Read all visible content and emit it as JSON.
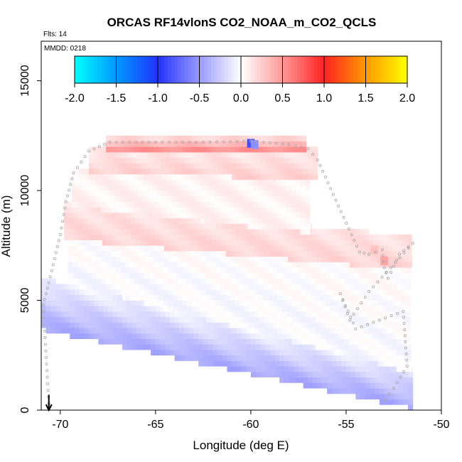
{
  "chart_data": {
    "type": "heatmap",
    "title": "ORCAS RF14vlonS CO2_NOAA_m_CO2_QCLS",
    "corner_labels": {
      "flights": "Flts: 14",
      "date": "MMDD: 0218"
    },
    "xlabel": "Longitude (deg E)",
    "ylabel": "Altitude (m)",
    "xlim": [
      -71,
      -50
    ],
    "ylim": [
      0,
      16800
    ],
    "x_ticks": [
      -70,
      -65,
      -60,
      -55,
      -50
    ],
    "x_tick_labels": [
      "-70",
      "-65",
      "-60",
      "-55",
      "-50"
    ],
    "y_ticks": [
      0,
      5000,
      10000,
      15000
    ],
    "y_tick_labels": [
      "0",
      "5000",
      "10000",
      "15000"
    ],
    "colorbar": {
      "ticks": [
        -2.0,
        -1.5,
        -1.0,
        -0.5,
        0.0,
        0.5,
        1.0,
        1.5,
        2.0
      ],
      "tick_labels": [
        "-2.0",
        "-1.5",
        "-1.0",
        "-0.5",
        "0.0",
        "0.5",
        "1.0",
        "1.5",
        "2.0"
      ],
      "stops": [
        {
          "v": -2.0,
          "color": "#00ffff"
        },
        {
          "v": -1.5,
          "color": "#0099ff"
        },
        {
          "v": -1.0,
          "color": "#2233ff"
        },
        {
          "v": -0.5,
          "color": "#9999ff"
        },
        {
          "v": 0.0,
          "color": "#ffffff"
        },
        {
          "v": 0.5,
          "color": "#ff9999"
        },
        {
          "v": 1.0,
          "color": "#ff2222"
        },
        {
          "v": 1.5,
          "color": "#ff9900"
        },
        {
          "v": 2.0,
          "color": "#ffff00"
        }
      ]
    },
    "layers": [
      {
        "lon_start": -71.0,
        "lon_end": -51.6,
        "alt_low_start": 3800,
        "alt_low_end": 200,
        "alt_high_start": 5900,
        "alt_high_end": 1900,
        "value_low": -0.42,
        "value_high": -0.08
      },
      {
        "lon_start": -69.6,
        "lon_end": -51.8,
        "alt_low_start": 5900,
        "alt_low_end": 1900,
        "alt_high_start": 8600,
        "alt_high_end": 6500,
        "value_low": -0.03,
        "value_high": 0.02
      },
      {
        "lon_start": -69.8,
        "lon_end": -51.6,
        "alt_low_start": 7900,
        "alt_low_end": 6500,
        "alt_high_start": 9400,
        "alt_high_end": 7800,
        "value_low": 0.2,
        "value_high": 0.14
      },
      {
        "lon_start": -69.4,
        "lon_end": -57.0,
        "alt_low_start": 9400,
        "alt_low_end": 8200,
        "alt_high_start": 11000,
        "alt_high_end": 10600,
        "value_low": 0.06,
        "value_high": 0.06
      },
      {
        "lon_start": -68.5,
        "lon_end": -56.5,
        "alt_low_start": 11000,
        "alt_low_end": 10600,
        "alt_high_start": 11800,
        "alt_high_end": 12000,
        "value_low": 0.22,
        "value_high": 0.1
      },
      {
        "lon_start": -67.6,
        "lon_end": -57.2,
        "alt_low_start": 11800,
        "alt_low_end": 11800,
        "alt_high_start": 12300,
        "alt_high_end": 12300,
        "value_low": 0.58,
        "value_high": 0.2
      }
    ],
    "features": [
      {
        "lon": -60.0,
        "alt": 12150,
        "value": -0.85
      },
      {
        "lon": -59.8,
        "alt": 12100,
        "value": -0.55
      },
      {
        "lon": -53.0,
        "alt": 6800,
        "value": 0.45
      },
      {
        "lon": -53.5,
        "alt": 7300,
        "value": 0.3
      }
    ],
    "flight_track": [
      [
        -70.6,
        300
      ],
      [
        -70.9,
        4800
      ],
      [
        -70.6,
        5800
      ],
      [
        -70.0,
        8000
      ],
      [
        -69.7,
        9500
      ],
      [
        -69.3,
        10800
      ],
      [
        -68.5,
        11800
      ],
      [
        -67.4,
        12200
      ],
      [
        -65.0,
        12200
      ],
      [
        -62.5,
        12200
      ],
      [
        -60.0,
        12250
      ],
      [
        -58.0,
        12100
      ],
      [
        -57.0,
        11900
      ],
      [
        -56.5,
        11400
      ],
      [
        -54.3,
        7200
      ],
      [
        -53.8,
        7100
      ],
      [
        -53.1,
        7300
      ],
      [
        -53.0,
        6500
      ],
      [
        -52.8,
        6000
      ],
      [
        -52.2,
        7100
      ],
      [
        -51.5,
        7600
      ],
      [
        -53.8,
        5400
      ],
      [
        -54.8,
        4100
      ],
      [
        -55.3,
        5300
      ],
      [
        -54.5,
        3700
      ],
      [
        -52.0,
        4500
      ],
      [
        -51.8,
        2000
      ],
      [
        -52.5,
        1000
      ],
      [
        -53.2,
        200
      ]
    ],
    "arrow": {
      "lon": -70.6,
      "alt_from": 700,
      "alt_to": 0,
      "direction": "down"
    }
  }
}
